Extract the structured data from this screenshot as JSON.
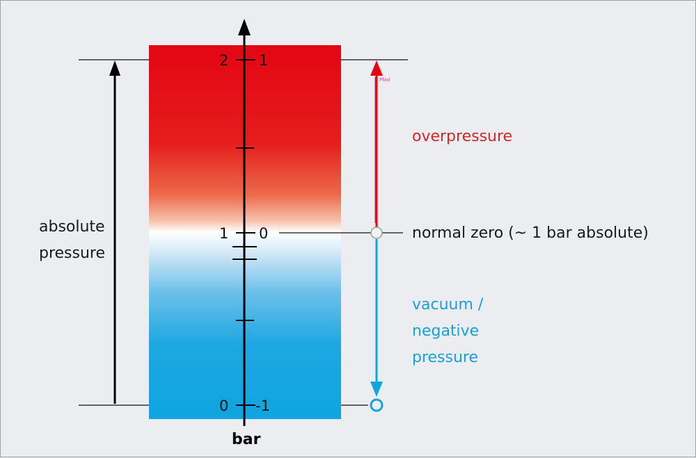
{
  "labels": {
    "absolute_line1": "absolute",
    "absolute_line2": "pressure",
    "overpressure": "overpressure",
    "normal_zero": "normal zero (~ 1 bar absolute)",
    "vacuum_line1": "vacuum /",
    "vacuum_line2": "negative",
    "vacuum_line3": "pressure",
    "unit": "bar",
    "tiny_tag": "Pfad"
  },
  "scale": {
    "absolute_ticks": [
      "2",
      "1",
      "0"
    ],
    "relative_ticks": [
      "1",
      "0",
      "-1"
    ]
  },
  "colors": {
    "overpressure": "#e30613",
    "vacuum": "#0ea5e0",
    "neutral": "#ffffff",
    "axis": "#000000"
  }
}
